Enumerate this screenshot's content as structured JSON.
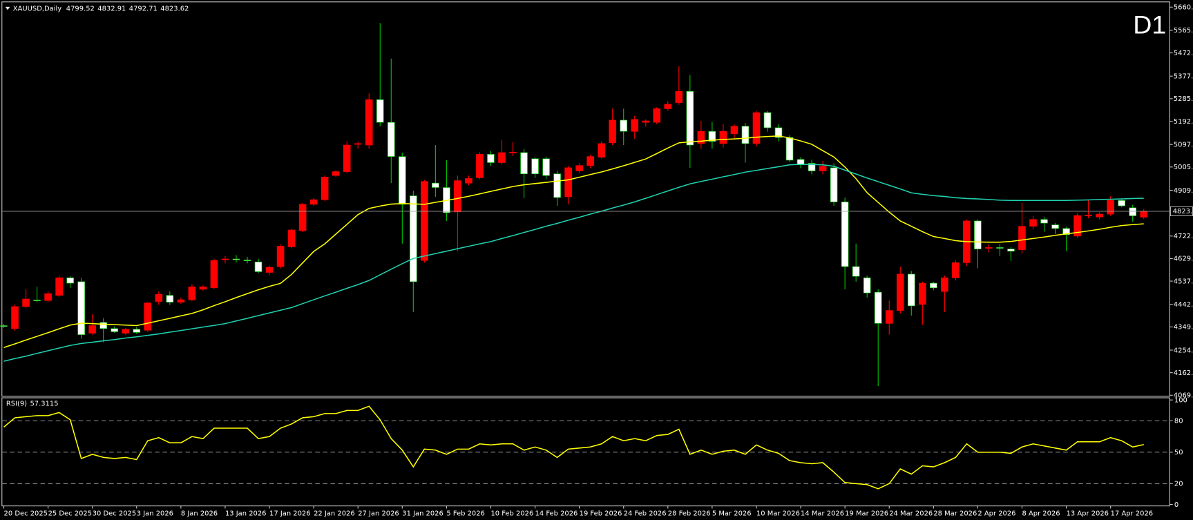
{
  "chart_data": [
    {
      "type": "candlestick",
      "title": "XAUUSD,Daily",
      "timeframe_label": "D1",
      "categories": [
        "20 Dec 2025",
        null,
        null,
        null,
        "25 Dec 2025",
        null,
        null,
        null,
        "30 Dec 2025",
        null,
        null,
        null,
        "3 Jan 2026",
        null,
        null,
        null,
        "8 Jan 2026",
        null,
        null,
        null,
        "13 Jan 2026",
        null,
        null,
        null,
        "17 Jan 2026",
        null,
        null,
        null,
        "22 Jan 2026",
        null,
        null,
        null,
        "27 Jan 2026",
        null,
        null,
        null,
        "31 Jan 2026",
        null,
        null,
        null,
        "5 Feb 2026",
        null,
        null,
        null,
        "10 Feb 2026",
        null,
        null,
        null,
        "14 Feb 2026",
        null,
        null,
        null,
        "19 Feb 2026",
        null,
        null,
        null,
        "24 Feb 2026",
        null,
        null,
        null,
        "28 Feb 2026",
        null,
        null,
        null,
        "5 Mar 2026",
        null,
        null,
        null,
        "10 Mar 2026",
        null,
        null,
        null,
        "14 Mar 2026",
        null,
        null,
        null,
        "19 Mar 2026",
        null,
        null,
        null,
        "24 Mar 2026",
        null,
        null,
        null,
        "28 Mar 2026",
        null,
        null,
        null,
        "2 Apr 2026",
        null,
        null,
        null,
        "8 Apr 2026",
        null,
        null,
        null,
        "13 Apr 2026",
        null,
        null,
        null,
        "17 Apr 2026",
        null,
        null,
        null
      ],
      "open": [
        4355,
        4343,
        4433,
        4460,
        4458,
        4479,
        4551,
        4535,
        4324,
        4368,
        4343,
        4324,
        4340,
        4336,
        4454,
        4479,
        4451,
        4461,
        4504,
        4510,
        4626,
        4628,
        4624,
        4616,
        4573,
        4597,
        4678,
        4744,
        4852,
        4871,
        4970,
        4986,
        5098,
        5095,
        5281,
        5188,
        5048,
        4887,
        4622,
        4939,
        4921,
        4821,
        4939,
        4961,
        5057,
        5023,
        5064,
        5064,
        5039,
        5039,
        4977,
        4883,
        4989,
        5011,
        5045,
        5104,
        5197,
        5151,
        5188,
        5188,
        5244,
        5269,
        5315,
        5101,
        5151,
        5101,
        5141,
        5172,
        5101,
        5228,
        5166,
        5126,
        5036,
        5020,
        4989,
        5002,
        4862,
        4597,
        4551,
        4492,
        4364,
        4417,
        4566,
        4442,
        4529,
        4495,
        4551,
        4613,
        4784,
        4672,
        4675,
        4669,
        4666,
        4762,
        4790,
        4768,
        4753,
        4722,
        4806,
        4800,
        4812,
        4868,
        4838,
        4799.52
      ],
      "high": [
        4362,
        4442,
        4504,
        4514,
        4495,
        4560,
        4557,
        4551,
        4402,
        4386,
        4352,
        4345,
        4349,
        4451,
        4495,
        4495,
        4470,
        4525,
        4520,
        4629,
        4640,
        4644,
        4637,
        4629,
        4600,
        4688,
        4752,
        4858,
        4877,
        4970,
        4992,
        5110,
        5110,
        5306,
        5595,
        5449,
        5064,
        4908,
        4952,
        5095,
        5033,
        4970,
        4970,
        5065,
        5070,
        5116,
        5107,
        5079,
        5045,
        5048,
        4990,
        5010,
        5020,
        5055,
        5110,
        5244,
        5244,
        5215,
        5200,
        5250,
        5275,
        5418,
        5381,
        5194,
        5190,
        5180,
        5180,
        5185,
        5235,
        5235,
        5180,
        5135,
        5045,
        5035,
        5030,
        5020,
        4880,
        4691,
        4560,
        4504,
        4458,
        4597,
        4579,
        4535,
        4535,
        4560,
        4622,
        4790,
        4790,
        4688,
        4690,
        4678,
        4858,
        4805,
        4800,
        4775,
        4760,
        4815,
        4870,
        4820,
        4885,
        4875,
        4850,
        4832.91
      ],
      "low": [
        4346,
        4333,
        4427,
        4451,
        4451,
        4473,
        4510,
        4302,
        4318,
        4287,
        4325,
        4318,
        4321,
        4330,
        4440,
        4440,
        4445,
        4455,
        4498,
        4505,
        4610,
        4614,
        4610,
        4570,
        4562,
        4590,
        4672,
        4738,
        4846,
        4865,
        4965,
        4980,
        5079,
        5079,
        5172,
        4939,
        4691,
        4411,
        4613,
        4883,
        4784,
        4660,
        4930,
        4955,
        5010,
        5015,
        5050,
        4877,
        4960,
        4955,
        4846,
        4852,
        4980,
        5000,
        5040,
        5095,
        5095,
        5120,
        5170,
        5180,
        5235,
        5260,
        5002,
        5079,
        5080,
        5085,
        5120,
        5023,
        5090,
        5150,
        5110,
        5025,
        5000,
        4975,
        4975,
        4846,
        4504,
        4535,
        4470,
        4107,
        4318,
        4405,
        4396,
        4358,
        4500,
        4411,
        4540,
        4600,
        4590,
        4655,
        4640,
        4620,
        4650,
        4750,
        4740,
        4730,
        4660,
        4715,
        4795,
        4790,
        4805,
        4840,
        4780,
        4792.71
      ],
      "close": [
        4352,
        4433,
        4464,
        4458,
        4486,
        4551,
        4529,
        4318,
        4355,
        4343,
        4330,
        4340,
        4327,
        4448,
        4483,
        4451,
        4461,
        4514,
        4514,
        4622,
        4628,
        4626,
        4622,
        4576,
        4594,
        4681,
        4747,
        4852,
        4871,
        4964,
        4986,
        5095,
        5101,
        5281,
        5188,
        5048,
        4852,
        4535,
        4946,
        4921,
        4818,
        4949,
        4958,
        5057,
        5023,
        5064,
        5066,
        4977,
        4977,
        4970,
        4880,
        5002,
        5011,
        5048,
        5101,
        5197,
        5151,
        5200,
        5194,
        5244,
        5262,
        5315,
        5095,
        5151,
        5110,
        5151,
        5172,
        5101,
        5228,
        5166,
        5126,
        5033,
        5014,
        4989,
        5008,
        4862,
        4597,
        4557,
        4489,
        4364,
        4417,
        4566,
        4436,
        4529,
        4510,
        4551,
        4613,
        4784,
        4669,
        4675,
        4672,
        4660,
        4762,
        4790,
        4775,
        4753,
        4728,
        4806,
        4808,
        4812,
        4868,
        4846,
        4805,
        4823.62
      ],
      "overlays": [
        {
          "color": "#ffff00",
          "values": [
            4265,
            4280,
            4296,
            4311,
            4326,
            4342,
            4357,
            4365,
            4363,
            4361,
            4359,
            4357,
            4355,
            4365,
            4375,
            4385,
            4395,
            4405,
            4420,
            4437,
            4453,
            4470,
            4486,
            4502,
            4516,
            4528,
            4565,
            4612,
            4659,
            4690,
            4730,
            4770,
            4810,
            4835,
            4845,
            4853,
            4855,
            4854,
            4852,
            4860,
            4868,
            4876,
            4885,
            4895,
            4905,
            4915,
            4925,
            4932,
            4937,
            4942,
            4947,
            4952,
            4963,
            4974,
            4985,
            4997,
            5010,
            5024,
            5038,
            5060,
            5083,
            5104,
            5108,
            5111,
            5115,
            5118,
            5120,
            5123,
            5127,
            5130,
            5132,
            5124,
            5112,
            5098,
            5072,
            5046,
            5005,
            4957,
            4900,
            4860,
            4820,
            4784,
            4762,
            4740,
            4720,
            4712,
            4703,
            4699,
            4698,
            4697,
            4697,
            4700,
            4706,
            4712,
            4718,
            4725,
            4731,
            4737,
            4743,
            4750,
            4758,
            4765,
            4769,
            4772
          ]
        },
        {
          "color": "#1fd1b0",
          "values": [
            4209,
            4220,
            4230,
            4241,
            4252,
            4263,
            4274,
            4282,
            4287,
            4293,
            4298,
            4304,
            4309,
            4315,
            4321,
            4328,
            4335,
            4342,
            4349,
            4356,
            4363,
            4374,
            4385,
            4396,
            4407,
            4418,
            4429,
            4445,
            4461,
            4477,
            4492,
            4508,
            4523,
            4540,
            4563,
            4586,
            4609,
            4630,
            4640,
            4650,
            4660,
            4670,
            4680,
            4690,
            4699,
            4712,
            4724,
            4737,
            4749,
            4762,
            4774,
            4787,
            4799,
            4812,
            4824,
            4837,
            4849,
            4862,
            4877,
            4892,
            4907,
            4922,
            4936,
            4946,
            4955,
            4965,
            4974,
            4984,
            4991,
            4999,
            5006,
            5014,
            5016,
            5015,
            5014,
            5008,
            4992,
            4976,
            4960,
            4945,
            4930,
            4915,
            4899,
            4893,
            4888,
            4884,
            4879,
            4876,
            4874,
            4872,
            4869,
            4868,
            4868,
            4868,
            4868,
            4868,
            4868,
            4869,
            4870,
            4872,
            4873,
            4874,
            4876,
            4877
          ]
        }
      ],
      "colors": {
        "up_body": "#ff0000",
        "down_body": "#ffffff",
        "up_wick": "#ff0000",
        "down_wick": "#00c800",
        "price_line": "#a0a0a0",
        "timeframe": "#ff0000"
      },
      "ylim": [
        4067,
        5680
      ],
      "yticks": [
        {
          "value": 5660.2,
          "label": "5660.20"
        },
        {
          "value": 5565,
          "label": "5565.00"
        },
        {
          "value": 5472.6,
          "label": "5472.60"
        },
        {
          "value": 5377.4,
          "label": "5377.40"
        },
        {
          "value": 5285,
          "label": "5285.00"
        },
        {
          "value": 5192.6,
          "label": "5192.60"
        },
        {
          "value": 5097.4,
          "label": "5097.40"
        },
        {
          "value": 5005,
          "label": "5005.00"
        },
        {
          "value": 4909.8,
          "label": "4909.80"
        },
        {
          "value": 4722.2,
          "label": "4722.20"
        },
        {
          "value": 4629.8,
          "label": "4629.80"
        },
        {
          "value": 4537.4,
          "label": "4537.40"
        },
        {
          "value": 4442.2,
          "label": "4442.20"
        },
        {
          "value": 4349.8,
          "label": "4349.80"
        },
        {
          "value": 4254.6,
          "label": "4254.60"
        },
        {
          "value": 4162.2,
          "label": "4162.20"
        },
        {
          "value": 4069.8,
          "label": "4069.80"
        }
      ],
      "grid": false
    },
    {
      "type": "line",
      "title": "RSI(9)",
      "color": "#ffff00",
      "values": [
        74,
        83,
        84,
        85,
        85,
        88,
        81,
        44,
        48,
        45,
        44,
        45,
        43,
        61,
        64,
        59,
        59,
        65,
        63,
        73,
        73,
        73,
        73,
        63,
        65,
        73,
        77,
        83,
        84,
        87,
        87,
        90,
        90,
        94,
        81,
        63,
        52,
        36,
        53,
        52,
        48,
        53,
        53,
        58,
        57,
        58,
        58,
        52,
        55,
        52,
        45,
        53,
        54,
        55,
        58,
        65,
        61,
        63,
        61,
        66,
        67,
        72,
        48,
        52,
        48,
        51,
        52,
        48,
        57,
        52,
        49,
        42,
        40,
        39,
        40,
        31,
        21,
        20,
        19,
        15,
        20,
        34,
        29,
        37,
        36,
        40,
        45,
        58,
        50,
        50,
        50,
        49,
        55,
        58,
        56,
        54,
        52,
        60,
        60,
        60,
        64,
        61,
        55,
        57.3115
      ],
      "ylim": [
        -1,
        101.7
      ],
      "yticks": [
        100,
        80,
        50,
        20,
        0
      ]
    }
  ]
}
